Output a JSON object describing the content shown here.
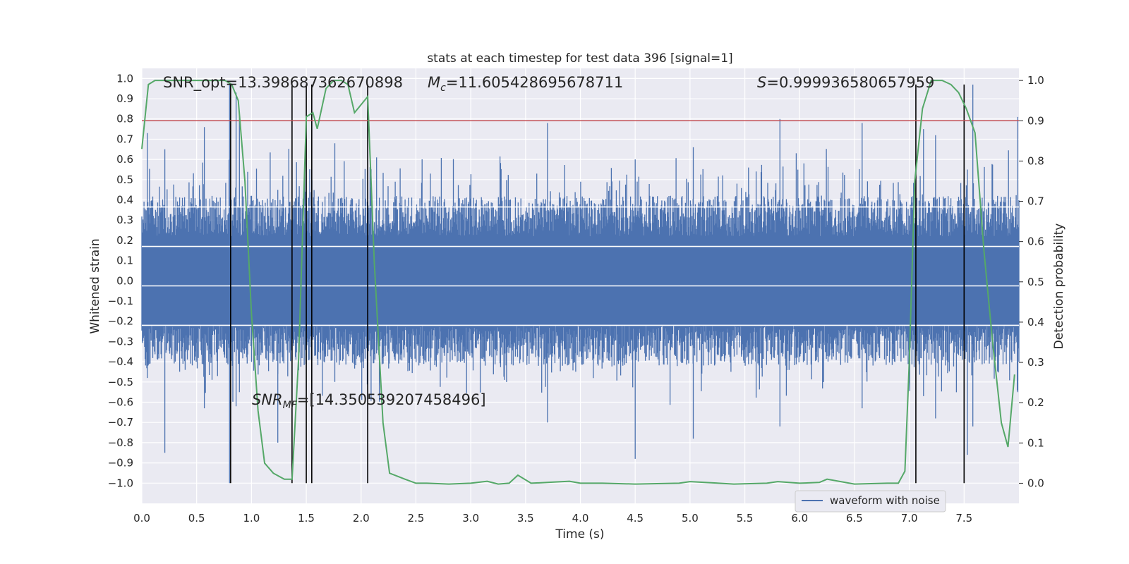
{
  "chart_data": {
    "type": "line",
    "title": "stats at each timestep for test data 396 [signal=1]",
    "xlabel": "Time (s)",
    "ylabel_left": "Whitened strain",
    "ylabel_right": "Detection probability",
    "xlim": [
      0,
      8
    ],
    "ylim_left": [
      -1.1,
      1.05
    ],
    "ylim_right": [
      -0.05,
      1.03
    ],
    "x_ticks": [
      0.0,
      0.5,
      1.0,
      1.5,
      2.0,
      2.5,
      3.0,
      3.5,
      4.0,
      4.5,
      5.0,
      5.5,
      6.0,
      6.5,
      7.0,
      7.5
    ],
    "x_tick_labels": [
      "0.0",
      "0.5",
      "1.0",
      "1.5",
      "2.0",
      "2.5",
      "3.0",
      "3.5",
      "4.0",
      "4.5",
      "5.0",
      "5.5",
      "6.0",
      "6.5",
      "7.0",
      "7.5"
    ],
    "y_left_ticks": [
      1.0,
      0.9,
      0.8,
      0.7,
      0.6,
      0.5,
      0.4,
      0.3,
      0.2,
      0.1,
      0.0,
      -0.1,
      -0.2,
      -0.3,
      -0.4,
      -0.5,
      -0.6,
      -0.7,
      -0.8,
      -0.9,
      -1.0
    ],
    "y_left_tick_labels": [
      "1.0",
      "0.9",
      "0.8",
      "0.7",
      "0.6",
      "0.5",
      "0.4",
      "0.3",
      "0.2",
      "0.1",
      "0.0",
      "−0.1",
      "−0.2",
      "−0.3",
      "−0.4",
      "−0.5",
      "−0.6",
      "−0.7",
      "−0.8",
      "−0.9",
      "−1.0"
    ],
    "y_right_ticks": [
      1.0,
      0.9,
      0.8,
      0.7,
      0.6,
      0.5,
      0.4,
      0.3,
      0.2,
      0.1,
      0.0
    ],
    "y_right_tick_labels": [
      "1.0",
      "0.9",
      "0.8",
      "0.7",
      "0.6",
      "0.5",
      "0.4",
      "0.3",
      "0.2",
      "0.1",
      "0.0"
    ],
    "threshold": 0.9,
    "annotations": {
      "snr_opt": "SNR_opt=13.398687362670898",
      "mc_symbol": "M",
      "mc_sub": "c",
      "mc_value": "=11.605428695678711",
      "s_symbol": "S",
      "s_value": "=0.999936580657959",
      "snr_mf_symbol": "SNR",
      "snr_mf_sub": "MF",
      "snr_mf_value": "=[14.350539207458496]"
    },
    "vertical_lines": [
      0.81,
      1.37,
      1.5,
      1.55,
      2.06,
      7.06,
      7.5
    ],
    "white_lines_strain": [
      0.365,
      0.17,
      -0.025,
      -0.22
    ],
    "series": [
      {
        "name": "waveform with noise",
        "axis": "left",
        "color": "#4c72b0",
        "peaks": [
          [
            0.8,
            0.97,
            -1.0
          ],
          [
            0.86,
            0.93,
            -0.62
          ],
          [
            0.89,
            0.83,
            -0.55
          ],
          [
            0.05,
            0.73,
            -0.48
          ],
          [
            0.21,
            0.65,
            -0.85
          ],
          [
            0.57,
            0.76,
            -0.63
          ],
          [
            1.24,
            0.45,
            -0.8
          ],
          [
            1.55,
            0.55,
            -0.62
          ],
          [
            1.76,
            0.68,
            -0.5
          ],
          [
            3.7,
            0.78,
            -0.7
          ],
          [
            4.5,
            0.6,
            -0.88
          ],
          [
            5.03,
            0.66,
            -0.78
          ],
          [
            5.82,
            0.8,
            -0.72
          ],
          [
            6.57,
            0.78,
            -0.63
          ],
          [
            7.13,
            0.75,
            -0.57
          ],
          [
            7.24,
            0.72,
            -0.68
          ],
          [
            7.58,
            0.97,
            -0.72
          ],
          [
            7.53,
            0.55,
            -0.86
          ],
          [
            7.99,
            0.81,
            -0.55
          ]
        ]
      },
      {
        "name": "detection probability",
        "axis": "right",
        "color": "#55a868",
        "x": [
          0.0,
          0.06,
          0.12,
          0.2,
          0.3,
          0.4,
          0.5,
          0.6,
          0.7,
          0.76,
          0.82,
          0.88,
          0.94,
          1.0,
          1.06,
          1.12,
          1.2,
          1.3,
          1.37,
          1.43,
          1.5,
          1.56,
          1.6,
          1.68,
          1.75,
          1.82,
          1.88,
          1.94,
          2.0,
          2.06,
          2.12,
          2.2,
          2.26,
          2.4,
          2.5,
          2.6,
          2.8,
          3.0,
          3.15,
          3.25,
          3.35,
          3.43,
          3.55,
          3.7,
          3.9,
          4.0,
          4.2,
          4.5,
          4.9,
          5.0,
          5.4,
          5.7,
          5.8,
          6.0,
          6.18,
          6.25,
          6.5,
          6.8,
          6.9,
          6.96,
          7.0,
          7.05,
          7.12,
          7.2,
          7.3,
          7.38,
          7.45,
          7.52,
          7.6,
          7.68,
          7.76,
          7.84,
          7.9,
          7.96
        ],
        "y": [
          0.83,
          0.99,
          1.0,
          1.0,
          1.0,
          1.0,
          1.0,
          1.0,
          1.0,
          1.0,
          0.99,
          0.95,
          0.75,
          0.42,
          0.18,
          0.05,
          0.025,
          0.01,
          0.01,
          0.31,
          0.91,
          0.92,
          0.88,
          0.98,
          1.0,
          1.0,
          0.99,
          0.92,
          0.94,
          0.96,
          0.55,
          0.15,
          0.025,
          0.01,
          0.0,
          0.0,
          -0.002,
          0.0,
          0.005,
          -0.002,
          0.0,
          0.02,
          0.0,
          0.002,
          0.005,
          0.0,
          0.0,
          -0.002,
          0.0,
          0.004,
          -0.002,
          0.0,
          0.004,
          0.0,
          0.002,
          0.01,
          -0.002,
          0.0,
          0.0,
          0.03,
          0.3,
          0.75,
          0.93,
          1.0,
          1.0,
          0.99,
          0.97,
          0.93,
          0.87,
          0.58,
          0.35,
          0.15,
          0.09,
          0.27
        ]
      }
    ],
    "legend": {
      "location": "lower-right",
      "entries": [
        "waveform with noise"
      ]
    }
  }
}
